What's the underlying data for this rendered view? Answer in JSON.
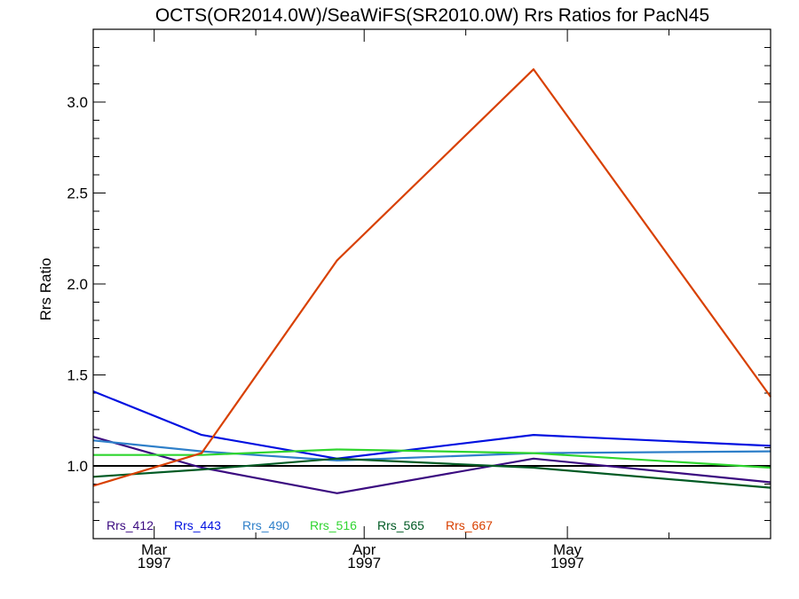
{
  "chart_data": {
    "type": "line",
    "title": "OCTS(OR2014.0W)/SeaWiFS(SR2010.0W)  Rrs Ratios for PacN45",
    "xlabel": "",
    "ylabel": "Rrs Ratio",
    "x_axis": {
      "ticks": [
        {
          "date": "1997-03-01",
          "label_month": "Mar",
          "label_year": "1997"
        },
        {
          "date": "1997-04-01",
          "label_month": "Apr",
          "label_year": "1997"
        },
        {
          "date": "1997-05-01",
          "label_month": "May",
          "label_year": "1997"
        }
      ],
      "xlim": [
        "1997-02-20",
        "1997-05-31"
      ]
    },
    "y_axis": {
      "ticks": [
        "1.0",
        "1.5",
        "2.0",
        "2.5",
        "3.0"
      ],
      "ylim": [
        0.6,
        3.4
      ]
    },
    "reference_line": {
      "y": 1.0,
      "color": "#000000"
    },
    "legend_placement": "bottom-left",
    "grid": false,
    "x": [
      "1997-02-20",
      "1997-03-08",
      "1997-03-28",
      "1997-04-26",
      "1997-05-31"
    ],
    "series": [
      {
        "name": "Rrs_412",
        "color": "#3b0b80",
        "values": [
          1.16,
          0.99,
          0.85,
          1.04,
          0.91
        ]
      },
      {
        "name": "Rrs_443",
        "color": "#0010e0",
        "values": [
          1.41,
          1.17,
          1.04,
          1.17,
          1.11
        ]
      },
      {
        "name": "Rrs_490",
        "color": "#2e7fc9",
        "values": [
          1.14,
          1.08,
          1.03,
          1.07,
          1.08
        ]
      },
      {
        "name": "Rrs_516",
        "color": "#2fd52f",
        "values": [
          1.06,
          1.06,
          1.09,
          1.07,
          0.99
        ]
      },
      {
        "name": "Rrs_565",
        "color": "#005a24",
        "values": [
          0.94,
          0.98,
          1.04,
          0.99,
          0.88
        ]
      },
      {
        "name": "Rrs_667",
        "color": "#d84000",
        "values": [
          0.89,
          1.07,
          2.13,
          3.18,
          1.38
        ]
      }
    ]
  }
}
